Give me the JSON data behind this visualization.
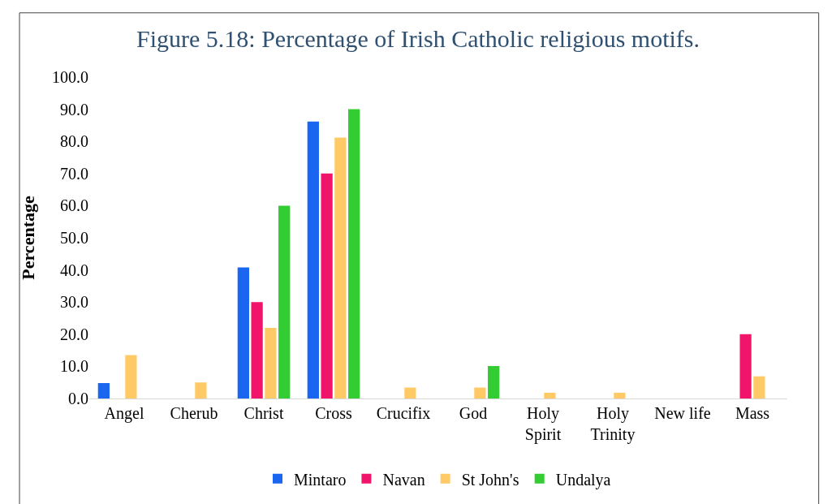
{
  "chart_data": {
    "type": "bar",
    "title": "Figure 5.18: Percentage of Irish Catholic religious motifs.",
    "ylabel": "Percentage",
    "categories": [
      "Angel",
      "Cherub",
      "Christ",
      "Cross",
      "Crucifix",
      "God",
      "Holy\nSpirit",
      "Holy\nTrinity",
      "New life",
      "Mass"
    ],
    "series": [
      {
        "name": "Mintaro",
        "color": "#1a66f0",
        "values": [
          4.8,
          0,
          40.8,
          86.2,
          0,
          0,
          0,
          0,
          0,
          0
        ]
      },
      {
        "name": "Navan",
        "color": "#f0146a",
        "values": [
          0,
          0,
          30.0,
          70.0,
          0,
          0,
          0,
          0,
          0,
          20.0
        ]
      },
      {
        "name": "St John's",
        "color": "#ffc966",
        "values": [
          13.5,
          5.0,
          22.0,
          81.2,
          3.4,
          3.4,
          1.8,
          1.8,
          0,
          6.9
        ]
      },
      {
        "name": "Undalya",
        "color": "#33cc33",
        "values": [
          0,
          0,
          60.0,
          90.0,
          0,
          10.1,
          0,
          0,
          0,
          0
        ]
      }
    ],
    "ylim": [
      0,
      100
    ],
    "yticks": [
      {
        "value": 0,
        "label": "0.0"
      },
      {
        "value": 10,
        "label": "10.0"
      },
      {
        "value": 20,
        "label": "20.0"
      },
      {
        "value": 30,
        "label": "30.0"
      },
      {
        "value": 40,
        "label": "40.0"
      },
      {
        "value": 50,
        "label": "50.0"
      },
      {
        "value": 60,
        "label": "60.0"
      },
      {
        "value": 70,
        "label": "70.0"
      },
      {
        "value": 80,
        "label": "80.0"
      },
      {
        "value": 90,
        "label": "90.0"
      },
      {
        "value": 100,
        "label": "100.0"
      }
    ],
    "legend": "bottom"
  }
}
